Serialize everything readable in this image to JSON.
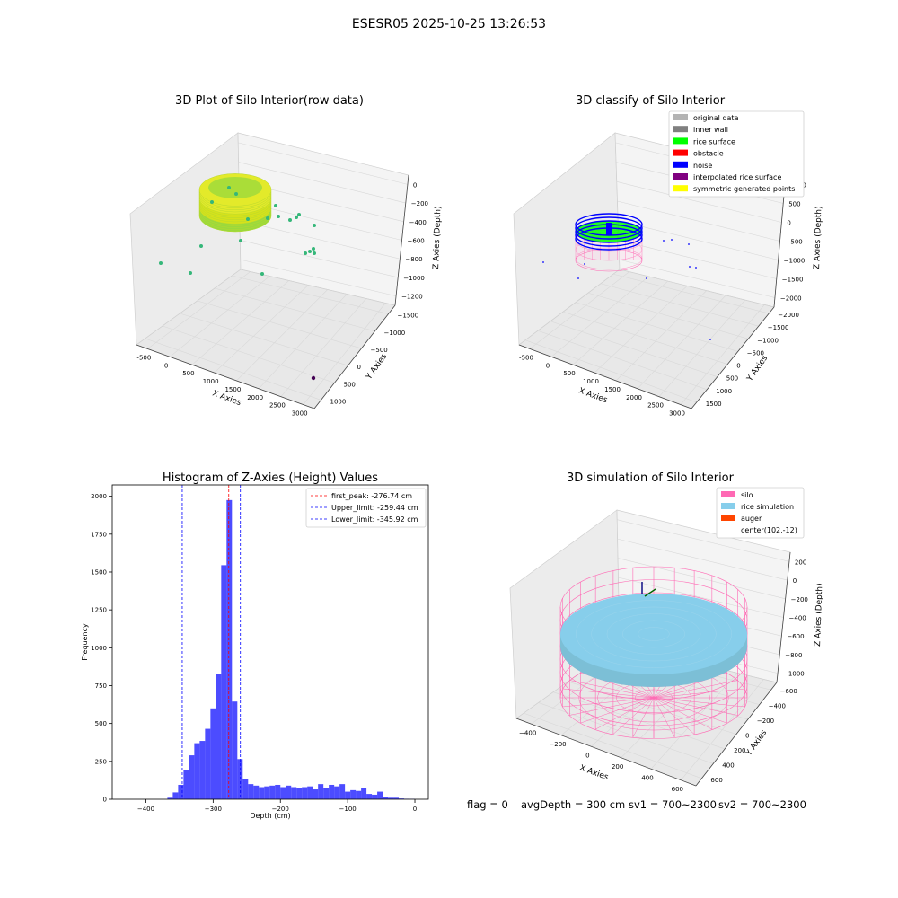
{
  "suptitle": "ESESR05 2025-10-25 13:26:53",
  "footer": {
    "flag": "flag = 0",
    "avg_depth": "avgDepth = 300 cm",
    "sv1": "sv1 = 700~2300",
    "sv2": "sv2 = 700~2300"
  },
  "chart_data": [
    {
      "id": "raw",
      "type": "scatter",
      "title": "3D Plot of Silo Interior(row data)",
      "xlabel": "X Axies",
      "ylabel": "Y Axies",
      "zlabel": "Z Axies (Depth)",
      "xticks": [
        "-500",
        "0",
        "500",
        "1000",
        "1500",
        "2000",
        "2500",
        "3000"
      ],
      "yticks": [
        "1000",
        "500",
        "0",
        "−500",
        "−1000",
        "−1500"
      ],
      "zticks": [
        "0",
        "−200",
        "−400",
        "−600",
        "−800",
        "−1000",
        "−1200"
      ],
      "colors": {
        "surface_light": "#d5e21b",
        "surface_mid": "#9bd93c",
        "surface_dark": "#52c569",
        "point": "#35b779",
        "outlier": "#440154"
      }
    },
    {
      "id": "classify",
      "type": "scatter",
      "title": "3D classify of Silo Interior",
      "xlabel": "X Axies",
      "ylabel": "Y Axies",
      "zlabel": "Z Axies (Depth)",
      "xticks": [
        "-500",
        "0",
        "500",
        "1000",
        "1500",
        "2000",
        "2500",
        "3000"
      ],
      "yticks": [
        "1500",
        "1000",
        "500",
        "0",
        "−500",
        "−1000",
        "−1500",
        "−2000"
      ],
      "zticks": [
        "1000",
        "500",
        "0",
        "−500",
        "−1000",
        "−1500",
        "−2000"
      ],
      "legend_position": "top-right",
      "legend": [
        {
          "label": "original data",
          "color": "#b3b3b3"
        },
        {
          "label": "inner wall",
          "color": "#808080"
        },
        {
          "label": "rice surface",
          "color": "#00ff00"
        },
        {
          "label": "obstacle",
          "color": "#ff0000"
        },
        {
          "label": "noise",
          "color": "#0000ff"
        },
        {
          "label": "interpolated rice surface",
          "color": "#800080"
        },
        {
          "label": "symmetric generated points",
          "color": "#ffff00"
        }
      ]
    },
    {
      "id": "histogram",
      "type": "bar",
      "title": "Histogram of Z-Axies (Height) Values",
      "xlabel": "Depth (cm)",
      "ylabel": "Frequency",
      "xlim": [
        -450,
        20
      ],
      "ylim": [
        0,
        2075
      ],
      "xticks": [
        -400,
        -300,
        -200,
        -100,
        0
      ],
      "yticks": [
        0,
        250,
        500,
        750,
        1000,
        1250,
        1500,
        1750,
        2000
      ],
      "bar_color": "#0000ff",
      "bin_width": 8,
      "bin_left": [
        -368,
        -360,
        -352,
        -344,
        -336,
        -328,
        -320,
        -312,
        -304,
        -296,
        -288,
        -280,
        -272,
        -264,
        -256,
        -248,
        -240,
        -232,
        -224,
        -216,
        -208,
        -200,
        -192,
        -184,
        -176,
        -168,
        -160,
        -152,
        -144,
        -136,
        -128,
        -120,
        -112,
        -104,
        -96,
        -88,
        -80,
        -72,
        -64,
        -56,
        -48,
        -40,
        -32,
        -24,
        -16,
        -8
      ],
      "values": [
        10,
        45,
        95,
        190,
        290,
        370,
        385,
        465,
        600,
        830,
        1545,
        1975,
        645,
        265,
        135,
        100,
        90,
        80,
        85,
        90,
        95,
        80,
        90,
        80,
        75,
        80,
        85,
        65,
        100,
        75,
        95,
        85,
        100,
        50,
        60,
        55,
        75,
        35,
        30,
        50,
        15,
        10,
        10,
        5,
        3,
        2
      ],
      "lines": [
        {
          "name": "first_peak",
          "x": -276.74,
          "color": "#ff0000"
        },
        {
          "name": "Upper_limit",
          "x": -259.44,
          "color": "#0000ff"
        },
        {
          "name": "Lower_limit",
          "x": -345.92,
          "color": "#0000ff"
        }
      ],
      "legend_position": "top-right",
      "legend": [
        {
          "label": "first_peak: -276.74 cm",
          "color": "#ff0000"
        },
        {
          "label": "Upper_limit: -259.44 cm",
          "color": "#0000ff"
        },
        {
          "label": "Lower_limit: -345.92 cm",
          "color": "#0000ff"
        }
      ]
    },
    {
      "id": "simulation",
      "type": "area",
      "title": "3D simulation of Silo Interior",
      "xlabel": "X Axies",
      "ylabel": "Y Axies",
      "zlabel": "Z Axies (Depth)",
      "xticks": [
        "−400",
        "−200",
        "0",
        "200",
        "400",
        "600"
      ],
      "yticks": [
        "600",
        "400",
        "200",
        "0",
        "−200",
        "−400",
        "−600"
      ],
      "zticks": [
        "200",
        "0",
        "−200",
        "−400",
        "−600",
        "−800",
        "−1000"
      ],
      "legend_position": "top-right",
      "legend": [
        {
          "label": "silo",
          "color": "#ff69b4"
        },
        {
          "label": "rice simulation",
          "color": "#87ceeb"
        },
        {
          "label": "auger",
          "color": "#ff4500"
        },
        {
          "label": "center(102,-12)",
          "color": ""
        }
      ]
    }
  ]
}
